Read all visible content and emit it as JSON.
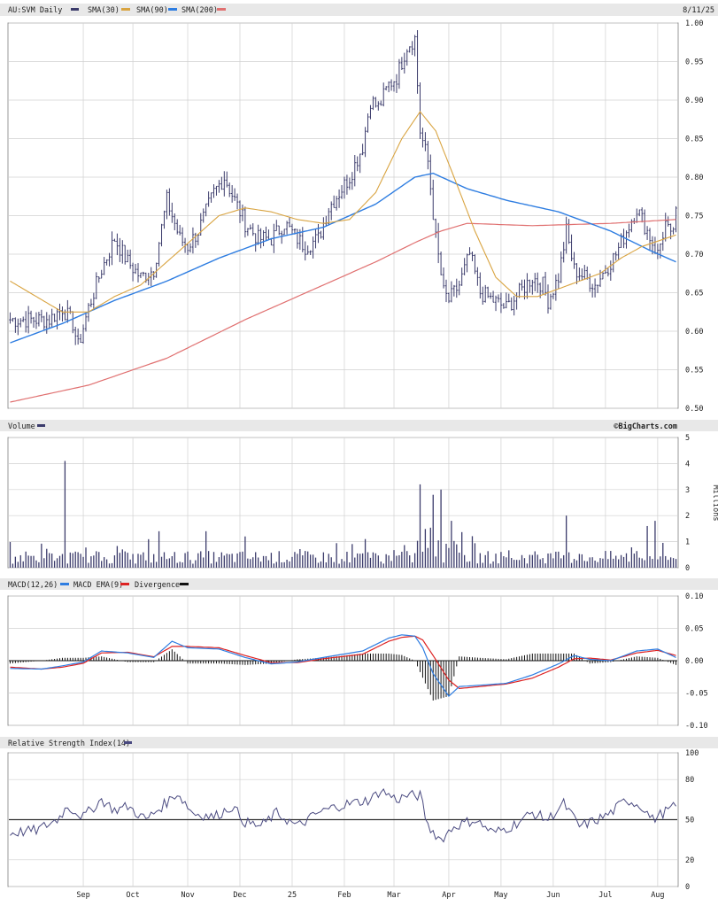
{
  "price_panel": {
    "symbol_label": "AU:SVM Daily",
    "date_label": "8/11/25",
    "legend": [
      {
        "label": "SMA(30)",
        "color": "#d9a441"
      },
      {
        "label": "SMA(90)",
        "color": "#2e7de1"
      },
      {
        "label": "SMA(200)",
        "color": "#e07070"
      }
    ]
  },
  "volume_panel": {
    "label": "Volume",
    "brand": "©BigCharts.com",
    "unit": "Millions"
  },
  "macd_panel": {
    "legend": [
      {
        "label": "MACD(12,26)",
        "color": "#2e7de1"
      },
      {
        "label": "MACD EMA(9)",
        "color": "#dd2222"
      },
      {
        "label": "Divergence",
        "color": "#111111"
      }
    ]
  },
  "rsi_panel": {
    "label": "Relative Strength Index(14)",
    "color": "#4a4a80"
  },
  "colors": {
    "price_bar": "#3b3b6b",
    "volume_bar": "#3b3b6b",
    "grid": "#d0d0d0",
    "header_bg": "#e8e8e8",
    "sma30": "#d9a441",
    "sma90": "#2e7de1",
    "sma200": "#e07070",
    "macd": "#2e7de1",
    "macd_ema": "#dd2222"
  },
  "chart_data": [
    {
      "type": "candlestick",
      "title": "AU:SVM Daily",
      "ylim": [
        0.5,
        1.0
      ],
      "y_ticks": [
        "0.50",
        "0.55",
        "0.60",
        "0.65",
        "0.70",
        "0.75",
        "0.80",
        "0.85",
        "0.90",
        "0.95",
        "1.00"
      ],
      "x_ticks": [
        "Sep",
        "Oct",
        "Nov",
        "Dec",
        "25",
        "Feb",
        "Mar",
        "Apr",
        "May",
        "Jun",
        "Jul",
        "Aug"
      ],
      "x_tick_index": [
        28,
        47,
        68,
        88,
        108,
        128,
        147,
        168,
        188,
        208,
        228,
        248
      ],
      "bars": 256,
      "close_keypoints": [
        [
          0,
          0.615
        ],
        [
          15,
          0.615
        ],
        [
          20,
          0.63
        ],
        [
          24,
          0.61
        ],
        [
          26,
          0.58
        ],
        [
          30,
          0.63
        ],
        [
          35,
          0.68
        ],
        [
          40,
          0.72
        ],
        [
          45,
          0.69
        ],
        [
          50,
          0.67
        ],
        [
          55,
          0.68
        ],
        [
          60,
          0.77
        ],
        [
          65,
          0.72
        ],
        [
          68,
          0.71
        ],
        [
          72,
          0.73
        ],
        [
          78,
          0.78
        ],
        [
          82,
          0.8
        ],
        [
          86,
          0.77
        ],
        [
          90,
          0.74
        ],
        [
          95,
          0.72
        ],
        [
          100,
          0.72
        ],
        [
          105,
          0.74
        ],
        [
          110,
          0.72
        ],
        [
          113,
          0.71
        ],
        [
          118,
          0.72
        ],
        [
          122,
          0.76
        ],
        [
          126,
          0.78
        ],
        [
          130,
          0.8
        ],
        [
          135,
          0.84
        ],
        [
          138,
          0.9
        ],
        [
          141,
          0.89
        ],
        [
          145,
          0.92
        ],
        [
          148,
          0.93
        ],
        [
          152,
          0.97
        ],
        [
          155,
          0.98
        ],
        [
          157,
          0.86
        ],
        [
          160,
          0.82
        ],
        [
          163,
          0.72
        ],
        [
          166,
          0.65
        ],
        [
          168,
          0.64
        ],
        [
          172,
          0.66
        ],
        [
          176,
          0.7
        ],
        [
          180,
          0.65
        ],
        [
          185,
          0.64
        ],
        [
          190,
          0.63
        ],
        [
          195,
          0.65
        ],
        [
          200,
          0.67
        ],
        [
          204,
          0.66
        ],
        [
          206,
          0.64
        ],
        [
          210,
          0.67
        ],
        [
          213,
          0.73
        ],
        [
          216,
          0.68
        ],
        [
          220,
          0.67
        ],
        [
          224,
          0.66
        ],
        [
          228,
          0.68
        ],
        [
          232,
          0.7
        ],
        [
          236,
          0.73
        ],
        [
          240,
          0.76
        ],
        [
          244,
          0.73
        ],
        [
          248,
          0.7
        ],
        [
          251,
          0.74
        ],
        [
          253,
          0.72
        ],
        [
          255,
          0.75
        ]
      ],
      "sma30_keypoints": [
        [
          0,
          0.665
        ],
        [
          10,
          0.645
        ],
        [
          20,
          0.625
        ],
        [
          30,
          0.625
        ],
        [
          40,
          0.645
        ],
        [
          50,
          0.66
        ],
        [
          60,
          0.69
        ],
        [
          70,
          0.72
        ],
        [
          80,
          0.75
        ],
        [
          90,
          0.76
        ],
        [
          100,
          0.755
        ],
        [
          110,
          0.745
        ],
        [
          120,
          0.74
        ],
        [
          130,
          0.745
        ],
        [
          140,
          0.78
        ],
        [
          150,
          0.85
        ],
        [
          157,
          0.885
        ],
        [
          163,
          0.86
        ],
        [
          170,
          0.8
        ],
        [
          178,
          0.73
        ],
        [
          186,
          0.67
        ],
        [
          194,
          0.645
        ],
        [
          202,
          0.645
        ],
        [
          210,
          0.655
        ],
        [
          218,
          0.665
        ],
        [
          226,
          0.675
        ],
        [
          234,
          0.695
        ],
        [
          242,
          0.71
        ],
        [
          255,
          0.725
        ]
      ],
      "sma90_keypoints": [
        [
          0,
          0.585
        ],
        [
          20,
          0.61
        ],
        [
          40,
          0.64
        ],
        [
          60,
          0.665
        ],
        [
          80,
          0.695
        ],
        [
          100,
          0.72
        ],
        [
          120,
          0.735
        ],
        [
          140,
          0.765
        ],
        [
          155,
          0.8
        ],
        [
          162,
          0.805
        ],
        [
          175,
          0.785
        ],
        [
          190,
          0.77
        ],
        [
          210,
          0.755
        ],
        [
          230,
          0.73
        ],
        [
          245,
          0.705
        ],
        [
          255,
          0.69
        ]
      ],
      "sma200_keypoints": [
        [
          0,
          0.508
        ],
        [
          30,
          0.53
        ],
        [
          60,
          0.565
        ],
        [
          90,
          0.615
        ],
        [
          120,
          0.66
        ],
        [
          140,
          0.69
        ],
        [
          155,
          0.715
        ],
        [
          165,
          0.73
        ],
        [
          175,
          0.74
        ],
        [
          200,
          0.737
        ],
        [
          230,
          0.74
        ],
        [
          255,
          0.745
        ]
      ]
    },
    {
      "type": "bar",
      "title": "Volume",
      "ylabel": "Millions",
      "ylim": [
        0,
        5
      ],
      "y_ticks": [
        "0",
        "1",
        "2",
        "3",
        "4",
        "5"
      ],
      "spikes": [
        [
          21,
          4.1
        ],
        [
          57,
          1.4
        ],
        [
          75,
          1.4
        ],
        [
          90,
          1.2
        ],
        [
          136,
          1.1
        ],
        [
          157,
          3.2
        ],
        [
          162,
          2.8
        ],
        [
          165,
          3.0
        ],
        [
          169,
          1.8
        ],
        [
          213,
          2.0
        ],
        [
          244,
          1.6
        ],
        [
          247,
          1.8
        ]
      ]
    },
    {
      "type": "line",
      "title": "MACD(12,26)",
      "ylim": [
        -0.1,
        0.1
      ],
      "y_ticks": [
        "0.10",
        "0.05",
        "0.00",
        "-0.05",
        "-0.10"
      ],
      "macd_keypoints": [
        [
          0,
          -0.012
        ],
        [
          12,
          -0.013
        ],
        [
          20,
          -0.008
        ],
        [
          28,
          -0.002
        ],
        [
          35,
          0.015
        ],
        [
          45,
          0.012
        ],
        [
          55,
          0.005
        ],
        [
          62,
          0.03
        ],
        [
          68,
          0.02
        ],
        [
          80,
          0.018
        ],
        [
          90,
          0.005
        ],
        [
          100,
          -0.005
        ],
        [
          110,
          -0.002
        ],
        [
          120,
          0.005
        ],
        [
          135,
          0.015
        ],
        [
          145,
          0.035
        ],
        [
          150,
          0.04
        ],
        [
          155,
          0.038
        ],
        [
          158,
          0.02
        ],
        [
          162,
          -0.02
        ],
        [
          168,
          -0.055
        ],
        [
          172,
          -0.04
        ],
        [
          180,
          -0.038
        ],
        [
          190,
          -0.035
        ],
        [
          200,
          -0.022
        ],
        [
          210,
          -0.005
        ],
        [
          216,
          0.008
        ],
        [
          222,
          0.002
        ],
        [
          230,
          0.0
        ],
        [
          240,
          0.015
        ],
        [
          248,
          0.018
        ],
        [
          255,
          0.005
        ]
      ],
      "ema_keypoints": [
        [
          0,
          -0.01
        ],
        [
          12,
          -0.013
        ],
        [
          20,
          -0.01
        ],
        [
          28,
          -0.004
        ],
        [
          35,
          0.012
        ],
        [
          45,
          0.013
        ],
        [
          55,
          0.006
        ],
        [
          62,
          0.022
        ],
        [
          68,
          0.022
        ],
        [
          80,
          0.02
        ],
        [
          90,
          0.008
        ],
        [
          100,
          -0.003
        ],
        [
          110,
          -0.003
        ],
        [
          120,
          0.003
        ],
        [
          135,
          0.01
        ],
        [
          145,
          0.03
        ],
        [
          150,
          0.036
        ],
        [
          155,
          0.038
        ],
        [
          158,
          0.032
        ],
        [
          162,
          0.008
        ],
        [
          168,
          -0.03
        ],
        [
          172,
          -0.043
        ],
        [
          180,
          -0.04
        ],
        [
          190,
          -0.036
        ],
        [
          200,
          -0.027
        ],
        [
          210,
          -0.01
        ],
        [
          216,
          0.003
        ],
        [
          222,
          0.004
        ],
        [
          230,
          0.001
        ],
        [
          240,
          0.012
        ],
        [
          248,
          0.016
        ],
        [
          255,
          0.008
        ]
      ]
    },
    {
      "type": "line",
      "title": "Relative Strength Index(14)",
      "ylim": [
        0,
        100
      ],
      "y_ticks": [
        "100",
        "80",
        "50",
        "20",
        "0"
      ],
      "rsi_keypoints": [
        [
          0,
          40
        ],
        [
          10,
          42
        ],
        [
          18,
          50
        ],
        [
          22,
          60
        ],
        [
          28,
          52
        ],
        [
          35,
          65
        ],
        [
          40,
          57
        ],
        [
          45,
          60
        ],
        [
          52,
          50
        ],
        [
          60,
          63
        ],
        [
          64,
          70
        ],
        [
          70,
          55
        ],
        [
          78,
          52
        ],
        [
          85,
          60
        ],
        [
          90,
          48
        ],
        [
          96,
          45
        ],
        [
          102,
          55
        ],
        [
          110,
          45
        ],
        [
          118,
          55
        ],
        [
          125,
          60
        ],
        [
          130,
          62
        ],
        [
          138,
          65
        ],
        [
          142,
          72
        ],
        [
          148,
          65
        ],
        [
          152,
          68
        ],
        [
          157,
          68
        ],
        [
          160,
          45
        ],
        [
          165,
          35
        ],
        [
          170,
          45
        ],
        [
          178,
          50
        ],
        [
          185,
          40
        ],
        [
          192,
          45
        ],
        [
          200,
          55
        ],
        [
          206,
          50
        ],
        [
          212,
          62
        ],
        [
          218,
          45
        ],
        [
          225,
          50
        ],
        [
          230,
          55
        ],
        [
          236,
          65
        ],
        [
          242,
          60
        ],
        [
          246,
          50
        ],
        [
          250,
          55
        ],
        [
          255,
          60
        ]
      ]
    }
  ]
}
